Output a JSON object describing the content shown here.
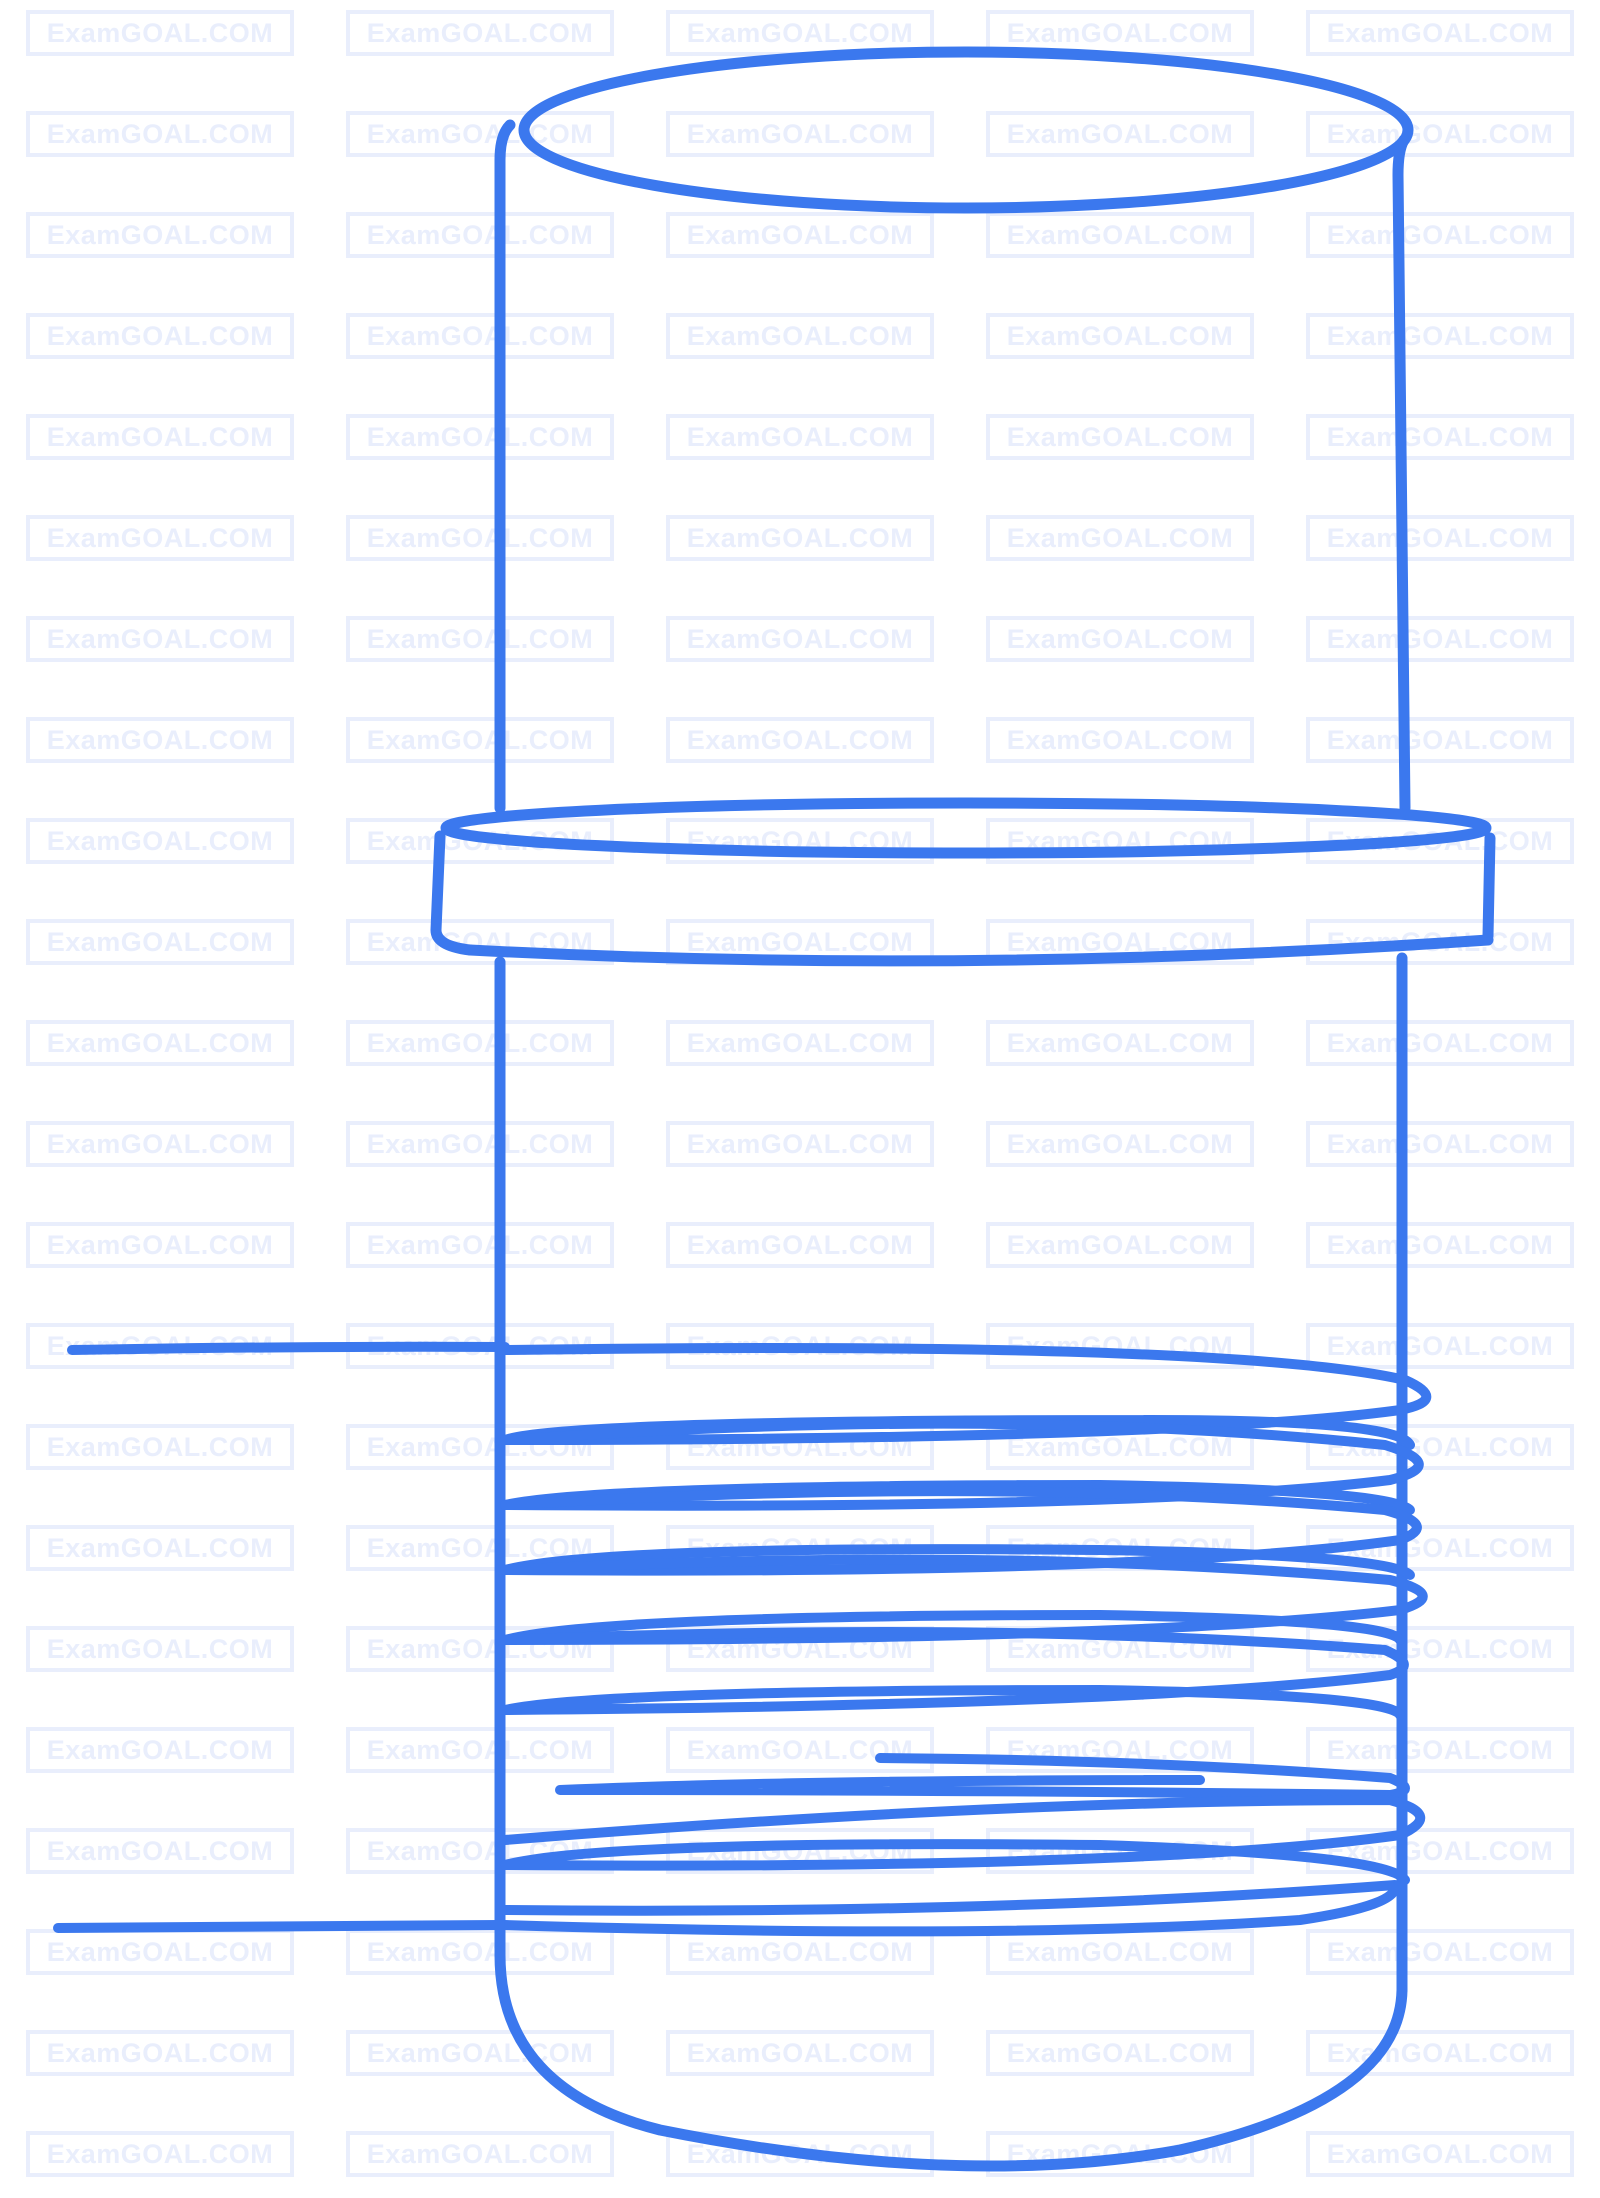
{
  "watermark": {
    "text": "ExamGOAL.COM",
    "color": "#e9eefc",
    "columns": 5,
    "rows": 22
  },
  "diagram": {
    "stroke_color": "#3b78ee",
    "background": "#ffffff",
    "description_parts": [
      "cylinder",
      "collar-ring",
      "coil-winding",
      "lead-wires"
    ]
  }
}
